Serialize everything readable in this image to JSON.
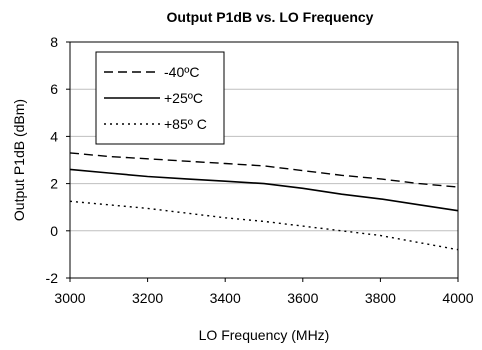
{
  "chart_data": {
    "type": "line",
    "title": "Output P1dB vs. LO Frequency",
    "xlabel": "LO Frequency (MHz)",
    "ylabel": "Output P1dB (dBm)",
    "xlim": [
      3000,
      4000
    ],
    "ylim": [
      -2,
      8
    ],
    "x_ticks": [
      3000,
      3200,
      3400,
      3600,
      3800,
      4000
    ],
    "y_ticks": [
      -2,
      0,
      2,
      4,
      6,
      8
    ],
    "grid": "horizontal",
    "legend_position": "top-left",
    "series": [
      {
        "name": "-40ºC",
        "style": "dashed",
        "color": "#000000",
        "x": [
          3000,
          3100,
          3200,
          3300,
          3400,
          3500,
          3600,
          3700,
          3800,
          3900,
          4000
        ],
        "y": [
          3.3,
          3.15,
          3.05,
          2.95,
          2.85,
          2.75,
          2.55,
          2.35,
          2.2,
          2.0,
          1.85
        ]
      },
      {
        "name": "+25ºC",
        "style": "solid",
        "color": "#000000",
        "x": [
          3000,
          3100,
          3200,
          3300,
          3400,
          3500,
          3600,
          3700,
          3800,
          3900,
          4000
        ],
        "y": [
          2.6,
          2.45,
          2.3,
          2.2,
          2.1,
          2.0,
          1.8,
          1.55,
          1.35,
          1.1,
          0.85
        ]
      },
      {
        "name": "+85º C",
        "style": "dotted",
        "color": "#000000",
        "x": [
          3000,
          3100,
          3200,
          3300,
          3400,
          3500,
          3600,
          3700,
          3800,
          3900,
          4000
        ],
        "y": [
          1.25,
          1.1,
          0.95,
          0.75,
          0.55,
          0.4,
          0.2,
          0.0,
          -0.2,
          -0.5,
          -0.8
        ]
      }
    ]
  }
}
